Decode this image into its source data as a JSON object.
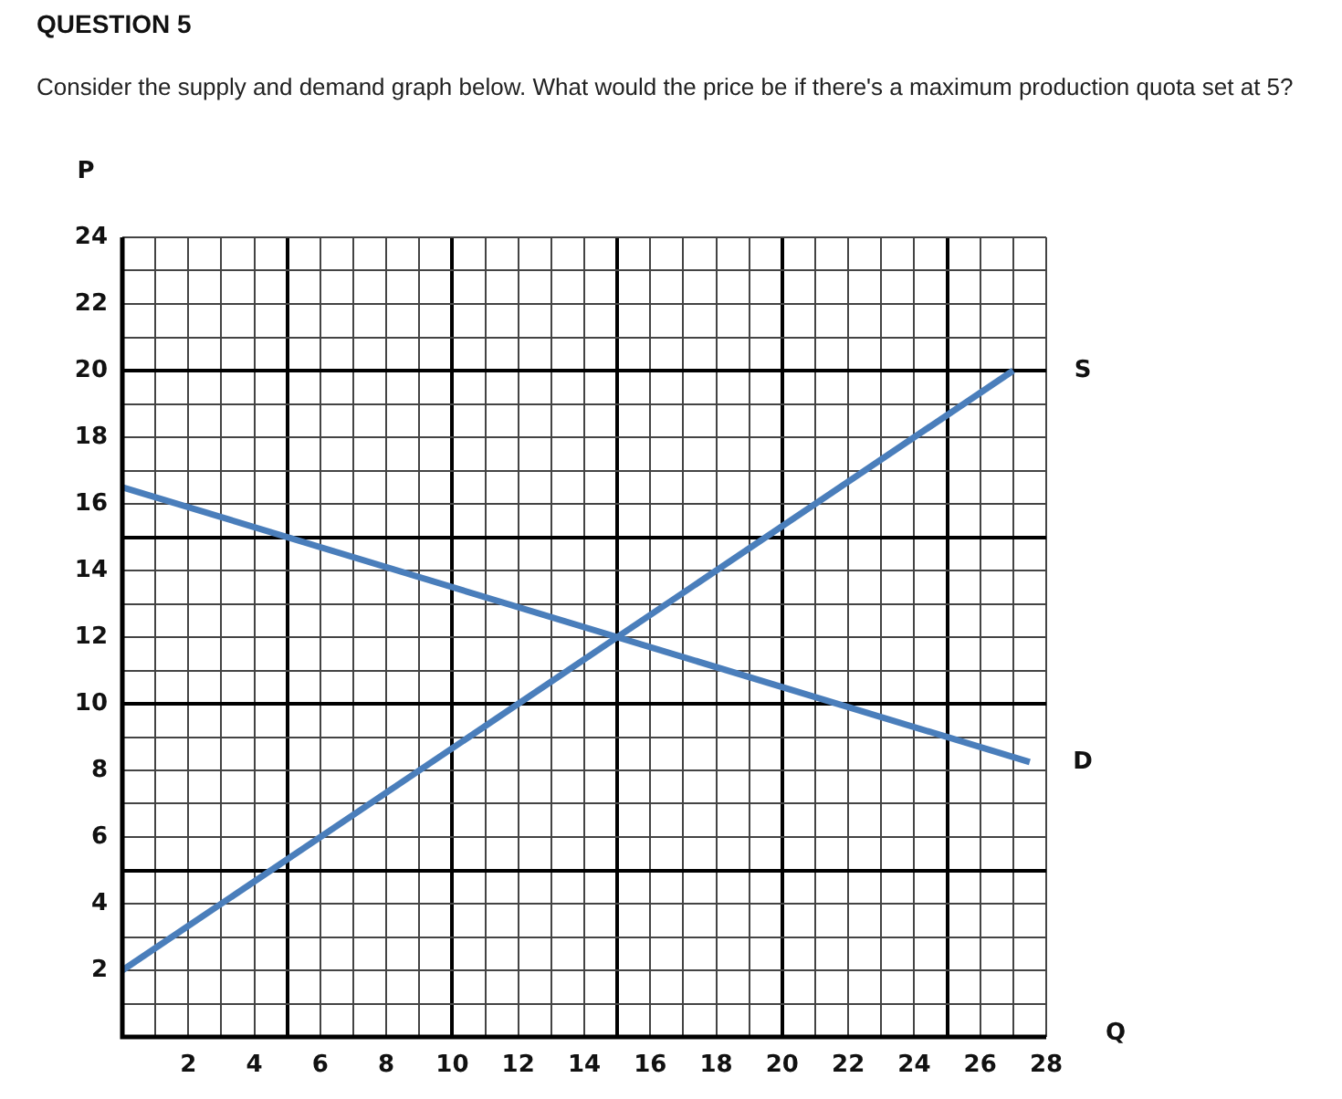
{
  "chart_data": {
    "type": "line",
    "title": "QUESTION 5",
    "subtitle": "Consider the supply and demand graph below. What would the price be if there's a maximum production quota set at 5?",
    "xlabel": "Q",
    "ylabel": "P",
    "series": [
      {
        "name": "S",
        "color": "#4a7ebb",
        "x": [
          0,
          27
        ],
        "values": [
          2,
          20
        ]
      },
      {
        "name": "D",
        "color": "#4a7ebb",
        "x": [
          0,
          27.5
        ],
        "values": [
          16.5,
          8.25
        ]
      }
    ],
    "xlim": [
      0,
      28
    ],
    "ylim": [
      0,
      24
    ],
    "xticks": [
      {
        "value": 0,
        "label": null
      },
      {
        "value": 1,
        "label": null
      },
      2,
      {
        "value": 3,
        "label": null
      },
      4,
      {
        "value": 5,
        "label": null
      },
      6,
      {
        "value": 7,
        "label": null
      },
      8,
      {
        "value": 9,
        "label": null
      },
      10,
      {
        "value": 11,
        "label": null
      },
      12,
      {
        "value": 13,
        "label": null
      },
      14,
      {
        "value": 15,
        "label": null
      },
      16,
      {
        "value": 17,
        "label": null
      },
      18,
      {
        "value": 19,
        "label": null
      },
      20,
      {
        "value": 21,
        "label": null
      },
      22,
      {
        "value": 23,
        "label": null
      },
      24,
      {
        "value": 25,
        "label": null
      },
      26,
      {
        "value": 27,
        "label": null
      },
      28
    ],
    "yticks": [
      {
        "value": 0,
        "label": null
      },
      {
        "value": 1,
        "label": null
      },
      2,
      {
        "value": 3,
        "label": null
      },
      4,
      {
        "value": 5,
        "label": null
      },
      6,
      {
        "value": 7,
        "label": null
      },
      8,
      {
        "value": 9,
        "label": null
      },
      10,
      {
        "value": 11,
        "label": null
      },
      12,
      {
        "value": 13,
        "label": null
      },
      14,
      {
        "value": 15,
        "label": null
      },
      16,
      {
        "value": 17,
        "label": null
      },
      18,
      {
        "value": 19,
        "label": null
      },
      20,
      {
        "value": 21,
        "label": null
      },
      22,
      {
        "value": 23,
        "label": null
      },
      24
    ],
    "grid": true,
    "legend": false,
    "marker": "none",
    "line_style": "solid"
  }
}
